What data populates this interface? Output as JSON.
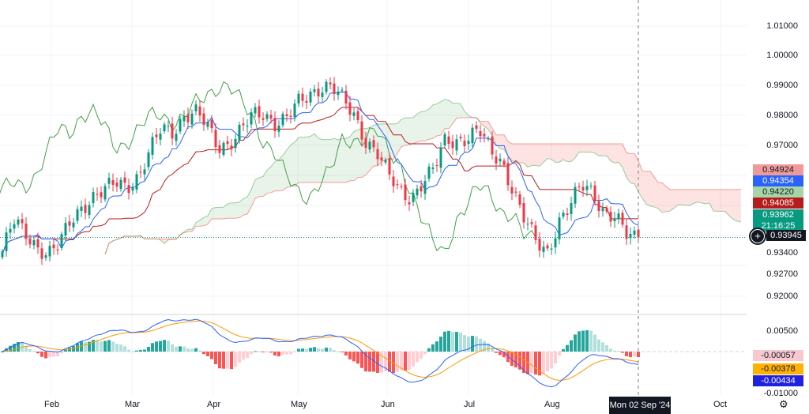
{
  "chart_data": {
    "type": "candlestick",
    "indicators": [
      "Ichimoku Cloud",
      "MACD"
    ],
    "close_anchors": [
      0.935,
      0.945,
      0.941,
      0.937,
      0.934,
      0.937,
      0.945,
      0.95,
      0.953,
      0.955,
      0.958,
      0.957,
      0.96,
      0.968,
      0.976,
      0.975,
      0.98,
      0.981,
      0.977,
      0.97,
      0.971,
      0.975,
      0.98,
      0.981,
      0.978,
      0.979,
      0.984,
      0.987,
      0.99,
      0.99,
      0.985,
      0.98,
      0.972,
      0.968,
      0.96,
      0.955,
      0.953,
      0.958,
      0.962,
      0.972,
      0.972,
      0.973,
      0.975,
      0.968,
      0.965,
      0.955,
      0.945,
      0.938,
      0.935,
      0.945,
      0.95,
      0.957,
      0.955,
      0.948,
      0.946,
      0.94,
      0.9396
    ],
    "ylim": [
      0.915,
      1.015
    ],
    "price_ticks": [
      "1.01000",
      "1.00000",
      "0.99000",
      "0.98000",
      "0.97000",
      "0.93400",
      "0.92700",
      "0.92000"
    ],
    "macd_ticks": [
      "0.00500",
      "-0.01000"
    ],
    "x_ticks": [
      "Feb",
      "Mar",
      "Apr",
      "May",
      "Jun",
      "Jul",
      "Aug",
      "Oct"
    ],
    "crosshair_date": "Mon 02 Sep '24",
    "labels": {
      "span_b": "0.94924",
      "tenkan": "0.94354",
      "span_a": "0.94220",
      "kijun": "0.94085",
      "last": "0.93962",
      "countdown": "21:16:25",
      "crosshair_price": "0.93945",
      "hist": "-0.00057",
      "signal": "-0.00378",
      "macd": "-0.00434"
    },
    "colors": {
      "up": "#089981",
      "down": "#f23645",
      "tenkan": "#2962ff",
      "kijun": "#b71c1c",
      "chikou": "#43a047",
      "macd": "#2962ff",
      "signal": "#ff9800"
    }
  }
}
